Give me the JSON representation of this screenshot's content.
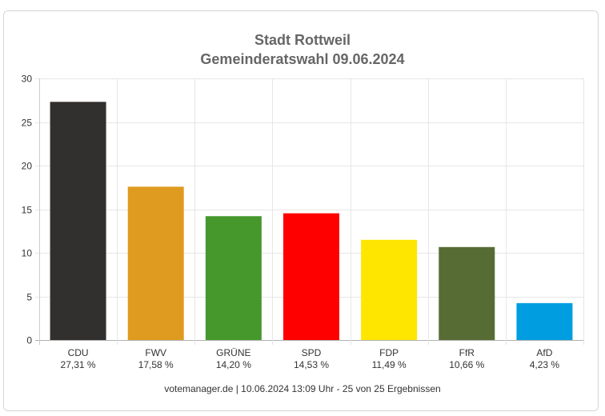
{
  "chart_data": {
    "type": "bar",
    "title": "Stadt Rottweil",
    "subtitle": "Gemeinderatswahl 09.06.2024",
    "categories": [
      "CDU",
      "FWV",
      "GRÜNE",
      "SPD",
      "FDP",
      "FfR",
      "AfD"
    ],
    "values": [
      27.31,
      17.58,
      14.2,
      14.53,
      11.49,
      10.66,
      4.23
    ],
    "value_labels": [
      "27,31 %",
      "17,58 %",
      "14,20 %",
      "14,53 %",
      "11,49 %",
      "10,66 %",
      "4,23 %"
    ],
    "colors": [
      "#32302e",
      "#df9b20",
      "#46982d",
      "#ff0000",
      "#ffe600",
      "#566c34",
      "#009ee0"
    ],
    "ylim": [
      0,
      30
    ],
    "yticks": [
      "0",
      "5",
      "10",
      "15",
      "20",
      "25",
      "30"
    ],
    "grid": true,
    "xlabel": "",
    "ylabel": ""
  },
  "footer": "votemanager.de | 10.06.2024 13:09 Uhr - 25 von 25 Ergebnissen"
}
